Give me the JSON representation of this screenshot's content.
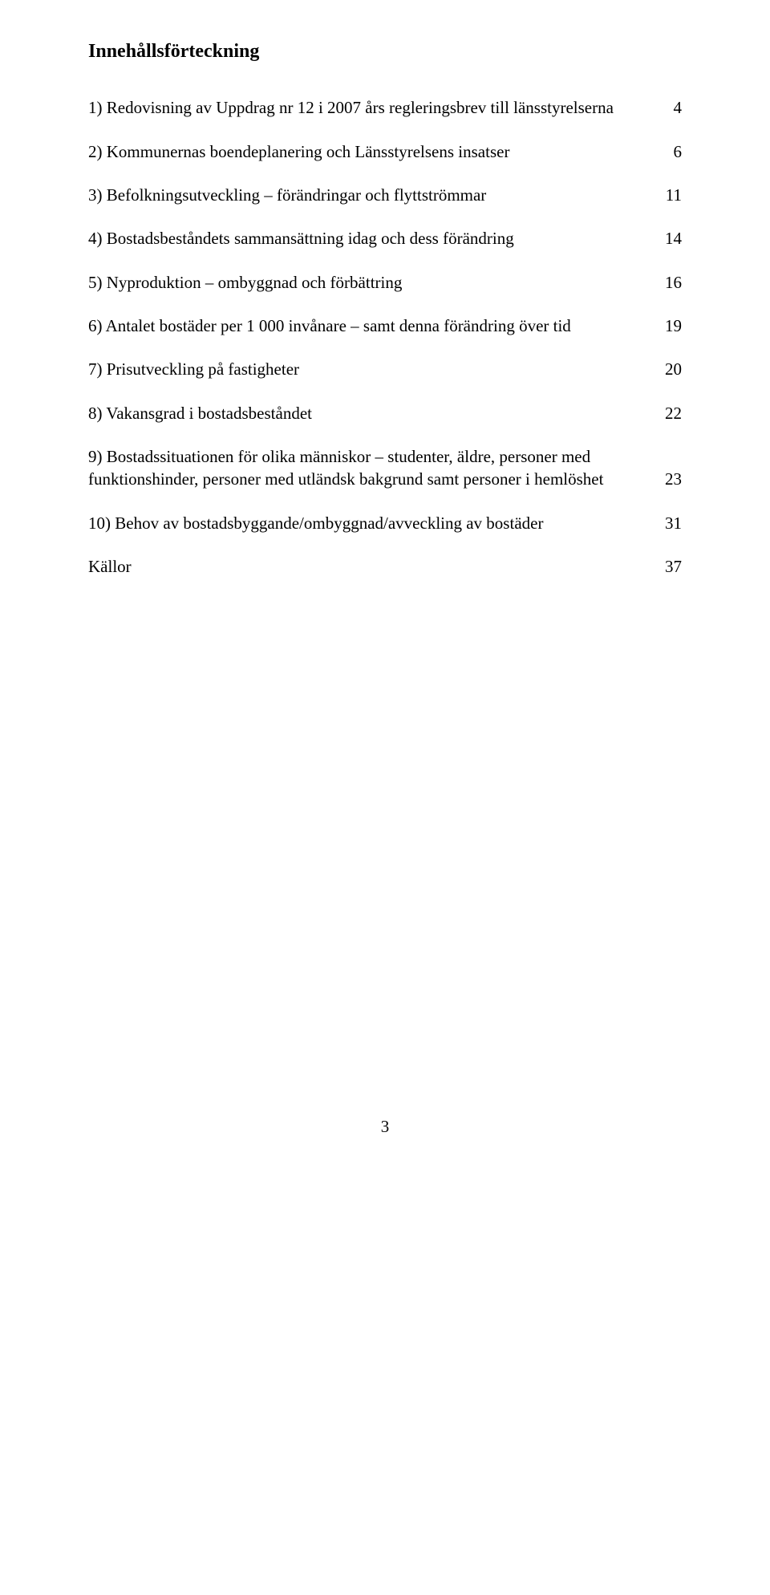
{
  "title": "Innehållsförteckning",
  "entries": [
    {
      "text": "1) Redovisning av Uppdrag nr 12 i 2007 års regleringsbrev till länsstyrelserna",
      "page": "4"
    },
    {
      "text": "2) Kommunernas boendeplanering och Länsstyrelsens insatser",
      "page": "6"
    },
    {
      "text": "3) Befolkningsutveckling – förändringar och flyttströmmar",
      "page": "11"
    },
    {
      "text": "4) Bostadsbeståndets sammansättning idag och dess förändring",
      "page": "14"
    },
    {
      "text": "5) Nyproduktion – ombyggnad och förbättring",
      "page": "16"
    },
    {
      "text": "6) Antalet bostäder per 1 000 invånare – samt denna förändring över tid",
      "page": "19"
    },
    {
      "text": "7) Prisutveckling på fastigheter",
      "page": "20"
    },
    {
      "text": "8) Vakansgrad i bostadsbeståndet",
      "page": "22"
    },
    {
      "text": "9) Bostadssituationen för olika människor – studenter, äldre, personer med funktionshinder, personer med utländsk bakgrund samt personer i hemlöshet",
      "page": "23"
    },
    {
      "text": "10) Behov av bostadsbyggande/ombyggnad/avveckling av bostäder",
      "page": "31"
    },
    {
      "text": "Källor",
      "page": "37"
    }
  ],
  "pageNumber": "3"
}
